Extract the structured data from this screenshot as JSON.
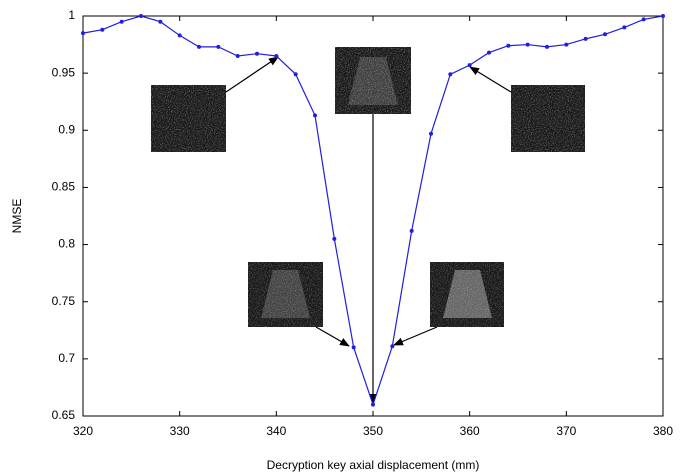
{
  "chart_data": {
    "type": "line",
    "x_label": "Decryption key axial displacement (mm)",
    "y_label": "NMSE",
    "x": [
      320,
      322,
      324,
      326,
      328,
      330,
      332,
      334,
      336,
      338,
      340,
      342,
      344,
      346,
      348,
      350,
      352,
      354,
      356,
      358,
      360,
      362,
      364,
      366,
      368,
      370,
      372,
      374,
      376,
      378,
      380
    ],
    "series": [
      {
        "color": "#1f1fe0",
        "values": [
          0.985,
          0.988,
          0.995,
          1.0,
          0.995,
          0.983,
          0.973,
          0.973,
          0.965,
          0.967,
          0.965,
          0.949,
          0.913,
          0.805,
          0.71,
          0.66,
          0.711,
          0.812,
          0.897,
          0.949,
          0.957,
          0.968,
          0.974,
          0.975,
          0.973,
          0.975,
          0.98,
          0.984,
          0.99,
          0.997,
          1.0
        ]
      }
    ],
    "xlim": [
      320,
      380
    ],
    "ylim": [
      0.65,
      1
    ],
    "xticks": [
      320,
      330,
      340,
      350,
      360,
      370,
      380
    ],
    "yticks": [
      0.65,
      0.7,
      0.75,
      0.8,
      0.85,
      0.9,
      0.95,
      1
    ],
    "grid": false
  }
}
